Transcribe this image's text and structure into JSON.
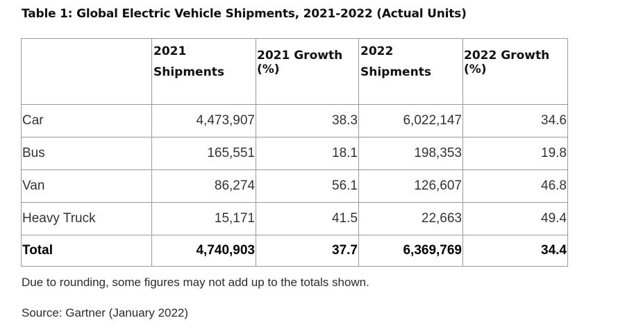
{
  "title": "Table 1: Global Electric Vehicle Shipments, 2021-2022 (Actual Units)",
  "columns": [
    {
      "line1": "",
      "line2": ""
    },
    {
      "line1": "2021",
      "line2": "Shipments"
    },
    {
      "line1": "2021 Growth",
      "line2": "(%)"
    },
    {
      "line1": "2022",
      "line2": "Shipments"
    },
    {
      "line1": "2022 Growth",
      "line2": "(%)"
    }
  ],
  "rows": [
    {
      "label": "Car",
      "s2021": "4,473,907",
      "g2021": "38.3",
      "s2022": "6,022,147",
      "g2022": "34.6"
    },
    {
      "label": "Bus",
      "s2021": "165,551",
      "g2021": "18.1",
      "s2022": "198,353",
      "g2022": "19.8"
    },
    {
      "label": "Van",
      "s2021": "86,274",
      "g2021": "56.1",
      "s2022": "126,607",
      "g2022": "46.8"
    },
    {
      "label": "Heavy Truck",
      "s2021": "15,171",
      "g2021": "41.5",
      "s2022": "22,663",
      "g2022": "49.4"
    }
  ],
  "total": {
    "label": "Total",
    "s2021": "4,740,903",
    "g2021": "37.7",
    "s2022": "6,369,769",
    "g2022": "34.4"
  },
  "note": "Due to rounding, some figures may not add up to the totals shown.",
  "source": "Source: Gartner (January 2022)"
}
